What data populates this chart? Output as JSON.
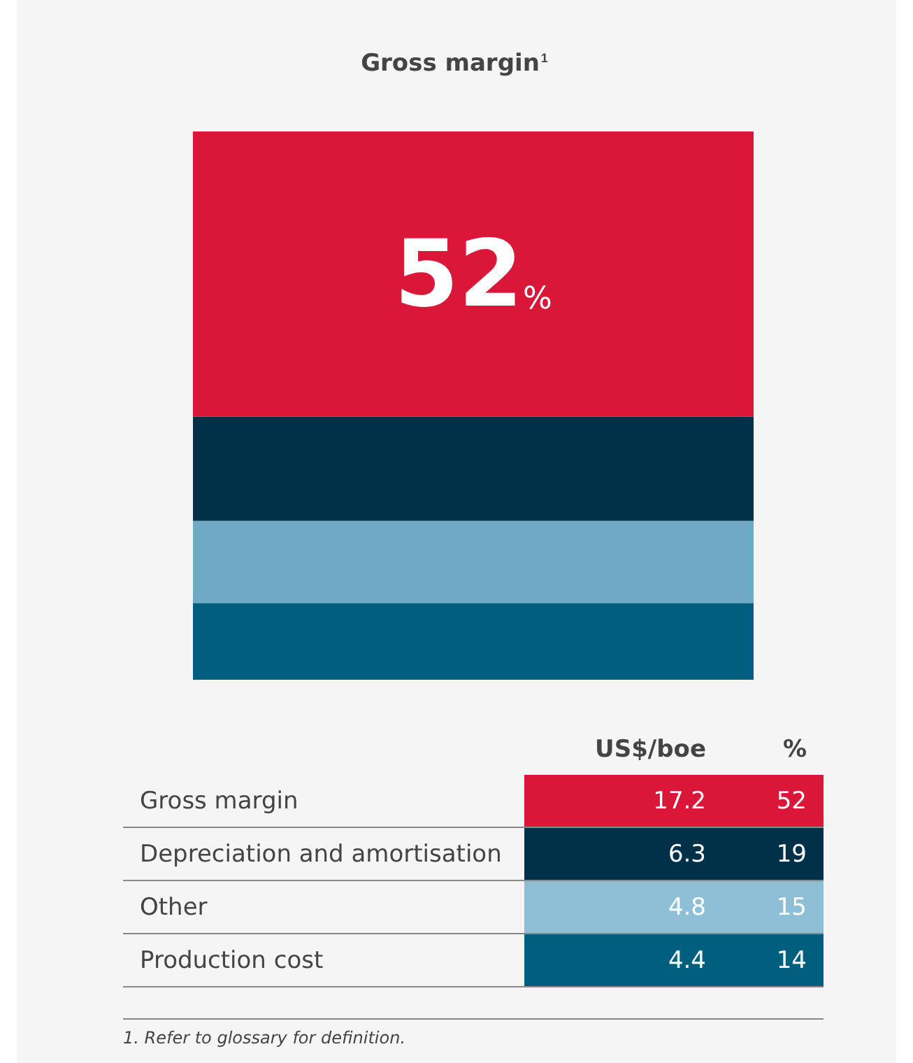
{
  "chart_data": [
    {
      "type": "bar",
      "title": "Gross margin$^{1}$",
      "categories": [
        null
      ],
      "stacked": true,
      "ylim": [
        0,
        100
      ],
      "tick_labels": false,
      "series": [
        {
          "color": "#005f7f",
          "values": [
            14
          ]
        },
        {
          "color": "#6fa9c6",
          "values": [
            15
          ]
        },
        {
          "color": "#003149",
          "values": [
            19
          ]
        },
        {
          "color": "#da1639",
          "values": [
            52
          ],
          "value_labels": [
            "52%"
          ]
        }
      ]
    },
    {
      "type": "other",
      "categories": [
        "Gross margin",
        "Depreciation and amortisation",
        "Other",
        "Production cost"
      ],
      "data_labels": true,
      "series": [
        {
          "name": "US$/boe",
          "colors": [
            "#da1639",
            "#003149",
            "#8fbfd6",
            "#005f7f"
          ],
          "values": [
            17.2,
            6.3,
            4.8,
            4.4
          ]
        },
        {
          "name": "%",
          "colors": [
            "#da1639",
            "#003149",
            "#8fbfd6",
            "#005f7f"
          ],
          "values": [
            52,
            19,
            15,
            14
          ]
        }
      ],
      "annotations": [
        "1. Refer to glossary for definition."
      ]
    }
  ]
}
